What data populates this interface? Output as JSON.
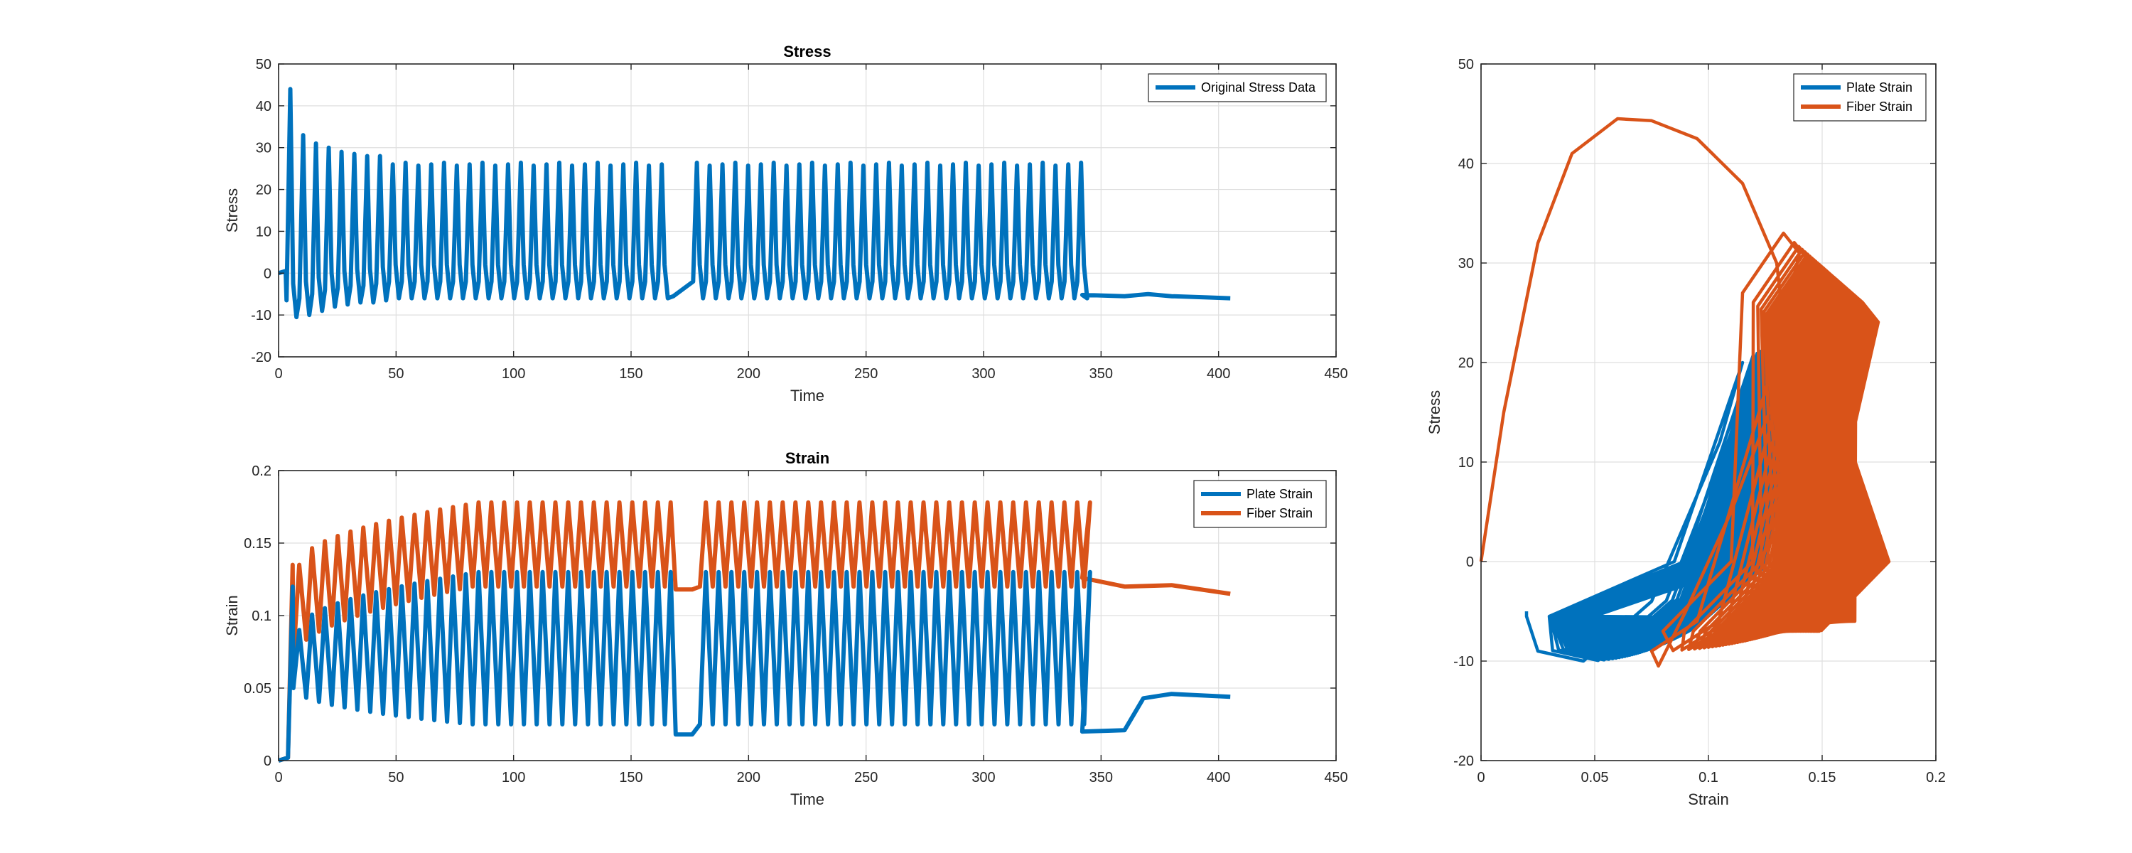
{
  "colors": {
    "blue": "#0072BD",
    "orange": "#D95319"
  },
  "chart_data": [
    {
      "id": "stress",
      "type": "line",
      "title": "Stress",
      "xlabel": "Time",
      "ylabel": "Stress",
      "xlim": [
        0,
        450
      ],
      "ylim": [
        -20,
        50
      ],
      "xticks": [
        0,
        50,
        100,
        150,
        200,
        250,
        300,
        350,
        400,
        450
      ],
      "yticks": [
        -20,
        -10,
        0,
        10,
        20,
        30,
        40,
        50
      ],
      "grid": true,
      "legend_position": "top-right",
      "series": [
        {
          "name": "Original Stress Data",
          "color": "#0072BD",
          "description": "Cyclic stress: first peak ~44, troughs ~-10 to -6, peaks ~33 to 25, rest gap ~168-177 at ~-5.5, flat tail ~-5 to -6 after ~342",
          "cycles": [
            {
              "t": 5,
              "peak": 44,
              "trough": -10.5
            },
            {
              "t": 10,
              "peak": 33,
              "trough": -10
            },
            {
              "t": 17,
              "peak": 31,
              "trough": -9
            },
            {
              "t": 22,
              "peak": 30,
              "trough": -8
            },
            {
              "t": 28,
              "peak": 29,
              "trough": -7.5
            },
            {
              "t": 33,
              "peak": 28.5,
              "trough": -7
            },
            {
              "t": 39,
              "peak": 28,
              "trough": -7
            },
            {
              "t": 44,
              "peak": 28,
              "trough": -6.5
            }
          ],
          "peak_steady": 26,
          "trough_steady": -6,
          "gap": [
            168,
            177
          ],
          "gap_value": -5.5,
          "end_cycles": 341.5,
          "tail": [
            [
              342,
              -5.2
            ],
            [
              360,
              -5.5
            ],
            [
              370,
              -5
            ],
            [
              380,
              -5.5
            ],
            [
              395,
              -5.8
            ],
            [
              405,
              -6
            ]
          ]
        }
      ]
    },
    {
      "id": "strain",
      "type": "line",
      "title": "Strain",
      "xlabel": "Time",
      "ylabel": "Strain",
      "xlim": [
        0,
        450
      ],
      "ylim": [
        0,
        0.2
      ],
      "xticks": [
        0,
        50,
        100,
        150,
        200,
        250,
        300,
        350,
        400,
        450
      ],
      "yticks": [
        0,
        0.05,
        0.1,
        0.15,
        0.2
      ],
      "grid": true,
      "legend_position": "top-right",
      "series": [
        {
          "name": "Plate Strain",
          "color": "#0072BD",
          "peaks_range": [
            0.09,
            0.13
          ],
          "troughs_range": [
            0.05,
            0.025
          ],
          "gap_value": 0.018,
          "tail": [
            [
              342,
              0.02
            ],
            [
              360,
              0.021
            ],
            [
              368,
              0.043
            ],
            [
              380,
              0.046
            ],
            [
              405,
              0.044
            ]
          ]
        },
        {
          "name": "Fiber Strain",
          "color": "#D95319",
          "peaks_range": [
            0.135,
            0.178
          ],
          "troughs_range": [
            0.07,
            0.12
          ],
          "gap_value": 0.118,
          "tail": [
            [
              342,
              0.126
            ],
            [
              360,
              0.12
            ],
            [
              380,
              0.121
            ],
            [
              405,
              0.115
            ]
          ]
        }
      ]
    },
    {
      "id": "stress-strain",
      "type": "line",
      "title": "",
      "xlabel": "Strain",
      "ylabel": "Stress",
      "xlim": [
        0,
        0.2
      ],
      "ylim": [
        -20,
        50
      ],
      "xticks": [
        0,
        0.05,
        0.1,
        0.15,
        0.2
      ],
      "yticks": [
        -20,
        -10,
        0,
        10,
        20,
        30,
        40,
        50
      ],
      "grid": true,
      "legend_position": "top-right",
      "series": [
        {
          "name": "Plate Strain",
          "color": "#0072BD",
          "description": "Hysteresis loops from strain ~0.02-0.06 at stress ~-5 to -10 rising to strain ~0.12-0.15 at stress ~20-25"
        },
        {
          "name": "Fiber Strain",
          "color": "#D95319",
          "description": "First loading loop from (0,0) up to peak ~44.5 at strain ~0.06 then down to ~0.13; subsequent dense loops strain ~0.07-0.18, stress ~-10 to 33"
        }
      ]
    }
  ]
}
